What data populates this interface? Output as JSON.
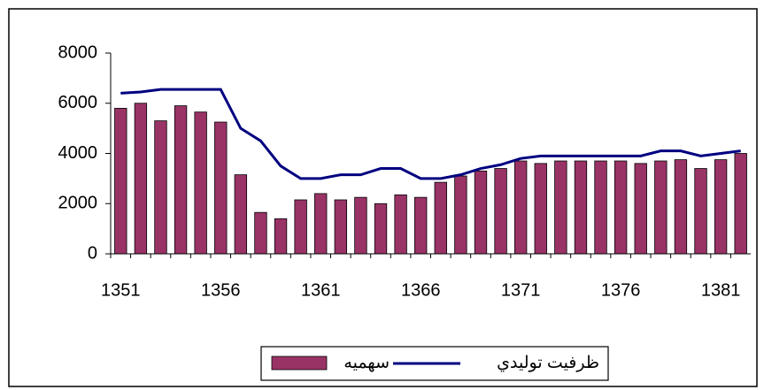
{
  "chart_data": {
    "type": "bar",
    "categories": [
      "1351",
      null,
      null,
      null,
      null,
      "1356",
      null,
      null,
      null,
      null,
      "1361",
      null,
      null,
      null,
      null,
      "1366",
      null,
      null,
      null,
      null,
      "1371",
      null,
      null,
      null,
      null,
      "1376",
      null,
      null,
      null,
      null,
      "1381",
      null
    ],
    "series": [
      {
        "name": "سهميه",
        "type": "bar",
        "color": "#993366",
        "values": [
          5800,
          6000,
          5300,
          5900,
          5650,
          5250,
          3150,
          1650,
          1400,
          2150,
          2400,
          2150,
          2250,
          2000,
          2350,
          2250,
          2850,
          3100,
          3300,
          3400,
          3700,
          3600,
          3700,
          3700,
          3700,
          3700,
          3600,
          3700,
          3750,
          3400,
          3750,
          4000
        ]
      },
      {
        "name": "ظرفيت توليدي",
        "type": "line",
        "color": "#000080",
        "values": [
          6400,
          6450,
          6550,
          6550,
          6550,
          6550,
          5000,
          4500,
          3500,
          3000,
          3000,
          3150,
          3150,
          3400,
          3400,
          3000,
          3000,
          3150,
          3400,
          3550,
          3800,
          3900,
          3900,
          3900,
          3900,
          3900,
          3900,
          4100,
          4100,
          3900,
          4000,
          4100
        ]
      }
    ],
    "ylim": [
      0,
      8000
    ],
    "yticks": [
      0,
      2000,
      4000,
      6000,
      8000
    ],
    "grid": false,
    "legend": "bottom"
  }
}
